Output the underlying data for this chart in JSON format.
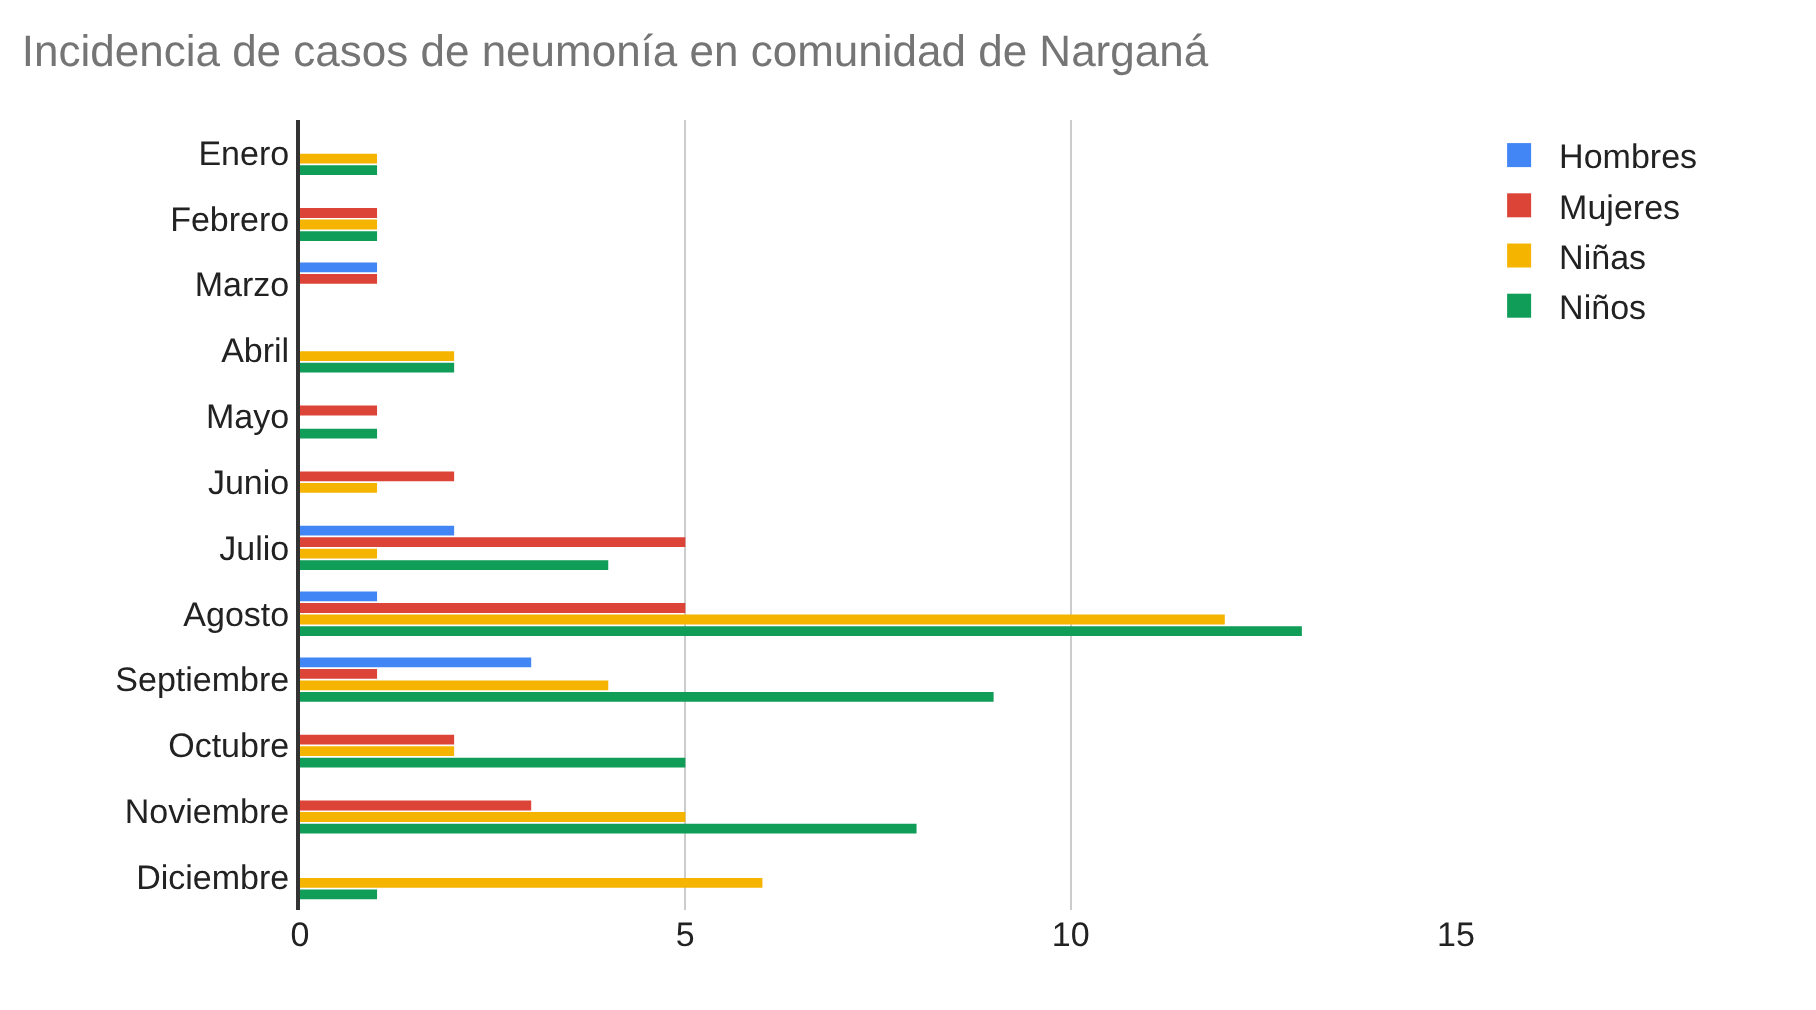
{
  "chart_data": {
    "type": "bar",
    "orientation": "horizontal",
    "title": "Incidencia de casos de neumonía en comunidad de Narganá",
    "categories": [
      "Enero",
      "Febrero",
      "Marzo",
      "Abril",
      "Mayo",
      "Junio",
      "Julio",
      "Agosto",
      "Septiembre",
      "Octubre",
      "Noviembre",
      "Diciembre"
    ],
    "series": [
      {
        "name": "Hombres",
        "color": "#4285f4",
        "values": [
          0,
          0,
          1,
          0,
          0,
          0,
          2,
          1,
          3,
          0,
          0,
          0
        ]
      },
      {
        "name": "Mujeres",
        "color": "#db4437",
        "values": [
          0,
          1,
          1,
          0,
          1,
          2,
          5,
          5,
          1,
          2,
          3,
          0
        ]
      },
      {
        "name": "Niñas",
        "color": "#f4b400",
        "values": [
          1,
          1,
          0,
          2,
          0,
          1,
          1,
          12,
          4,
          2,
          5,
          6
        ]
      },
      {
        "name": "Niños",
        "color": "#0f9d58",
        "values": [
          1,
          1,
          0,
          2,
          1,
          0,
          4,
          13,
          9,
          5,
          8,
          1
        ]
      }
    ],
    "xlim": [
      0,
      15
    ],
    "xticks": [
      0,
      5,
      10,
      15
    ],
    "grid": "x",
    "legend": "right"
  }
}
